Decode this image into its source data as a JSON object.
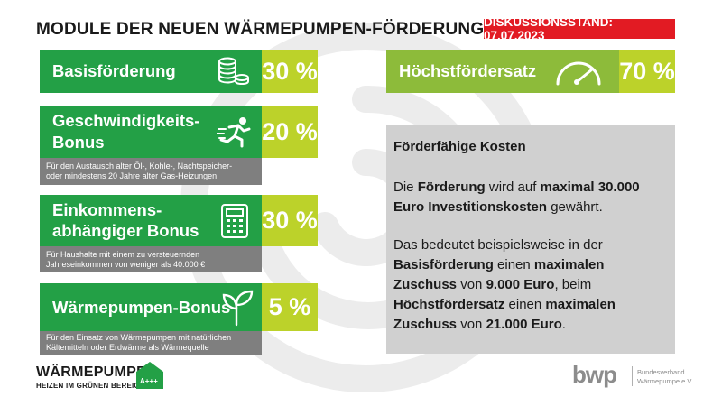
{
  "title": "MODULE DER NEUEN WÄRMEPUMPEN-FÖRDERUNG",
  "status": "DISKUSSIONSSTAND: 07.07.2023",
  "modules": [
    {
      "label_lines": [
        "Basisförderung"
      ],
      "value": "30 %",
      "icon": "coins-icon"
    },
    {
      "label_lines": [
        "Geschwindigkeits-",
        "Bonus"
      ],
      "value": "20 %",
      "icon": "runner-icon",
      "note_lines": [
        "Für den Austausch alter Öl-, Kohle-, Nachtspeicher-",
        "oder mindestens 20 Jahre alter Gas-Heizungen"
      ]
    },
    {
      "label_lines": [
        "Einkommens-",
        "abhängiger Bonus"
      ],
      "value": "30 %",
      "icon": "calculator-icon",
      "note_lines": [
        "Für Haushalte mit einem zu versteuernden",
        "Jahreseinkommen von weniger als 40.000 €"
      ]
    },
    {
      "label_lines": [
        "Wärmepumpen-Bonus"
      ],
      "value": "5 %",
      "icon": "sprout-icon",
      "note_lines": [
        "Für den Einsatz von Wärmepumpen mit natürlichen",
        "Kältemitteln oder Erdwärme als Wärmequelle"
      ]
    }
  ],
  "max_rate": {
    "label": "Höchstfördersatz",
    "value": "70 %",
    "icon": "gauge-icon"
  },
  "info": {
    "title": "Förderfähige Kosten",
    "p1": [
      "Die ",
      "Förderung",
      " wird auf ",
      "maximal 30.000 Euro Investitionskosten",
      " gewährt."
    ],
    "p2": [
      "Das bedeutet beispielsweise in der ",
      "Basisförderung",
      " einen ",
      "maximalen Zuschuss",
      " von ",
      "9.000 Euro",
      ", beim ",
      "Höchstfördersatz",
      " einen ",
      "maximalen Zuschuss",
      " von ",
      "21.000 Euro",
      "."
    ]
  },
  "logo_left": {
    "line1": "WÄRMEPUMPE",
    "line2": "HEIZEN IM GRÜNEN BEREICH",
    "badge": "A+++"
  },
  "logo_right": {
    "mark": "bwp",
    "line1": "Bundesverband",
    "line2": "Wärmepumpe e.V."
  },
  "colors": {
    "green": "#23a046",
    "yellow_green": "#bcd22a",
    "gray_note": "#7f7f7f",
    "info_bg": "#d0d0d0",
    "red": "#e21b23"
  }
}
